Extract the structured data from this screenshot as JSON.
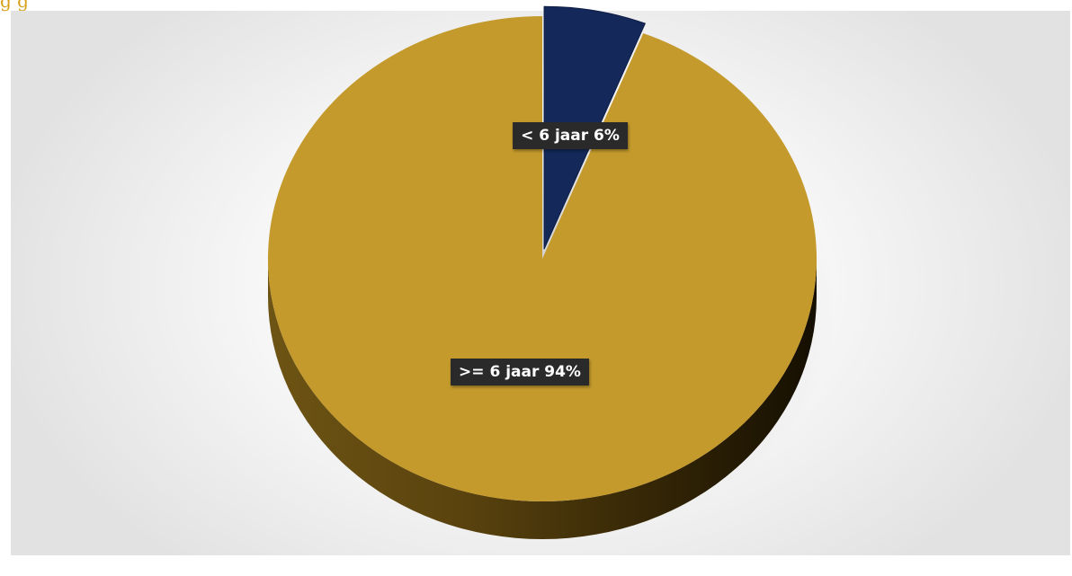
{
  "chart_data": {
    "type": "pie",
    "categories": [
      "< 6 jaar",
      ">= 6 jaar"
    ],
    "values": [
      6,
      94
    ],
    "slice_labels": [
      "< 6 jaar 6%",
      ">= 6 jaar 94%"
    ],
    "colors": [
      "#14285a",
      "#c49a2c"
    ],
    "title": "",
    "exploded_slice": "< 6 jaar",
    "legend": "none"
  }
}
